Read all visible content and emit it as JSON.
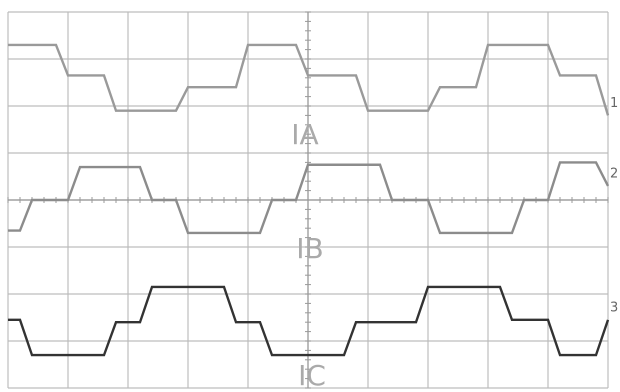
{
  "chart_data": {
    "type": "line",
    "x": [
      0,
      0.2,
      0.4,
      0.6,
      0.8,
      1,
      1.2,
      1.4,
      1.6,
      1.8,
      2,
      2.2,
      2.4,
      2.6,
      2.8,
      3,
      3.2,
      3.4,
      3.6,
      3.8,
      4,
      4.2,
      4.4,
      4.6,
      4.8,
      5,
      5.2,
      5.4,
      5.6,
      5.8,
      6,
      6.2,
      6.4,
      6.6,
      6.8,
      7,
      7.2,
      7.4,
      7.6,
      7.8,
      8,
      8.2,
      8.4,
      8.6,
      8.8,
      9,
      9.2,
      9.4,
      9.6,
      9.8,
      10
    ],
    "series": [
      {
        "name": "IA",
        "label": "1",
        "color": "#9a9a9a",
        "values": [
          3.3,
          3.3,
          3.3,
          3.3,
          3.3,
          2.65,
          2.65,
          2.65,
          2.65,
          1.9,
          1.9,
          1.9,
          1.9,
          1.9,
          1.9,
          2.4,
          2.4,
          2.4,
          2.4,
          2.4,
          3.3,
          3.3,
          3.3,
          3.3,
          3.3,
          2.65,
          2.65,
          2.65,
          2.65,
          2.65,
          1.9,
          1.9,
          1.9,
          1.9,
          1.9,
          1.9,
          2.4,
          2.4,
          2.4,
          2.4,
          3.3,
          3.3,
          3.3,
          3.3,
          3.3,
          3.3,
          2.65,
          2.65,
          2.65,
          2.65,
          1.8
        ]
      },
      {
        "name": "IB",
        "label": "2",
        "color": "#8c8c8c",
        "values": [
          -0.65,
          -0.65,
          0,
          0,
          0,
          0,
          0.7,
          0.7,
          0.7,
          0.7,
          0.7,
          0.7,
          0,
          0,
          0,
          -0.7,
          -0.7,
          -0.7,
          -0.7,
          -0.7,
          -0.7,
          -0.7,
          0,
          0,
          0,
          0.75,
          0.75,
          0.75,
          0.75,
          0.75,
          0.75,
          0.75,
          0,
          0,
          0,
          0,
          -0.7,
          -0.7,
          -0.7,
          -0.7,
          -0.7,
          -0.7,
          -0.7,
          0,
          0,
          0,
          0.8,
          0.8,
          0.8,
          0.8,
          0.3
        ]
      },
      {
        "name": "IC",
        "label": "3",
        "color": "#333333",
        "values": [
          -2.55,
          -2.55,
          -3.3,
          -3.3,
          -3.3,
          -3.3,
          -3.3,
          -3.3,
          -3.3,
          -2.6,
          -2.6,
          -2.6,
          -1.85,
          -1.85,
          -1.85,
          -1.85,
          -1.85,
          -1.85,
          -1.85,
          -2.6,
          -2.6,
          -2.6,
          -3.3,
          -3.3,
          -3.3,
          -3.3,
          -3.3,
          -3.3,
          -3.3,
          -2.6,
          -2.6,
          -2.6,
          -2.6,
          -2.6,
          -2.6,
          -1.85,
          -1.85,
          -1.85,
          -1.85,
          -1.85,
          -1.85,
          -1.85,
          -2.55,
          -2.55,
          -2.55,
          -2.55,
          -3.3,
          -3.3,
          -3.3,
          -3.3,
          -2.55
        ]
      }
    ],
    "xlim": [
      0,
      10
    ],
    "ylim": [
      -4,
      4
    ],
    "xticks": [
      0,
      1,
      2,
      3,
      4,
      5,
      6,
      7,
      8,
      9,
      10
    ],
    "yticks": [
      -4,
      -3,
      -2,
      -1,
      0,
      1,
      2,
      3,
      4
    ],
    "grid": true
  }
}
